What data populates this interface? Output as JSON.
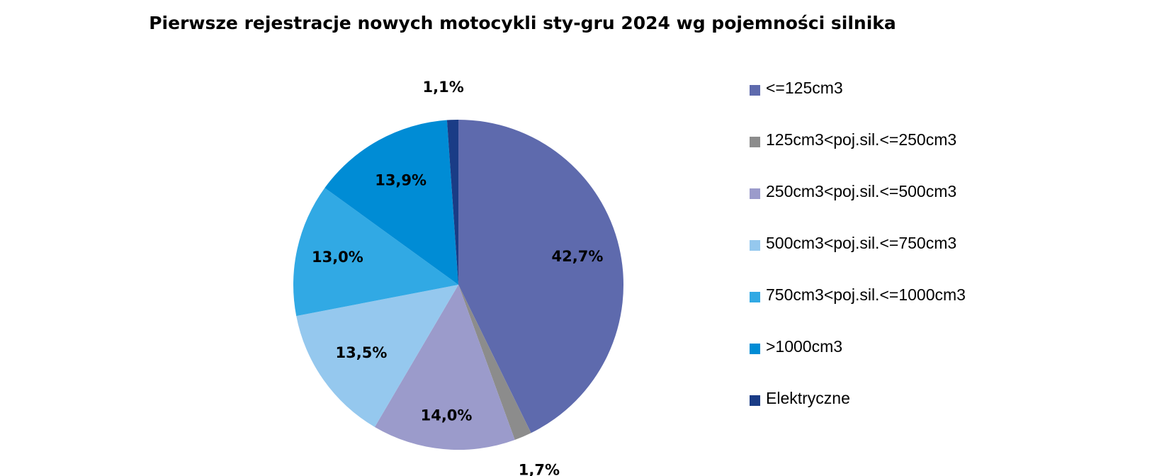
{
  "chart_data": {
    "type": "pie",
    "title": "Pierwsze rejestracje nowych motocykli sty-gru 2024 wg pojemności silnika",
    "categories": [
      "<=125cm3",
      "125cm3<poj.sil.<=250cm3",
      "250cm3<poj.sil.<=500cm3",
      "500cm3<poj.sil.<=750cm3",
      "750cm3<poj.sil.<=1000cm3",
      ">1000cm3",
      "Elektryczne"
    ],
    "values": [
      42.7,
      1.7,
      14.0,
      13.5,
      13.0,
      13.9,
      1.1
    ],
    "data_labels": [
      "42,7%",
      "1,7%",
      "14,0%",
      "13,5%",
      "13,0%",
      "13,9%",
      "1,1%"
    ],
    "colors": [
      "#5E6AAD",
      "#8C8C8C",
      "#9B9BCB",
      "#95C8EE",
      "#31A9E4",
      "#008CD5",
      "#1A3C86"
    ],
    "legend_position": "right",
    "start_angle": "top",
    "direction": "clockwise"
  }
}
